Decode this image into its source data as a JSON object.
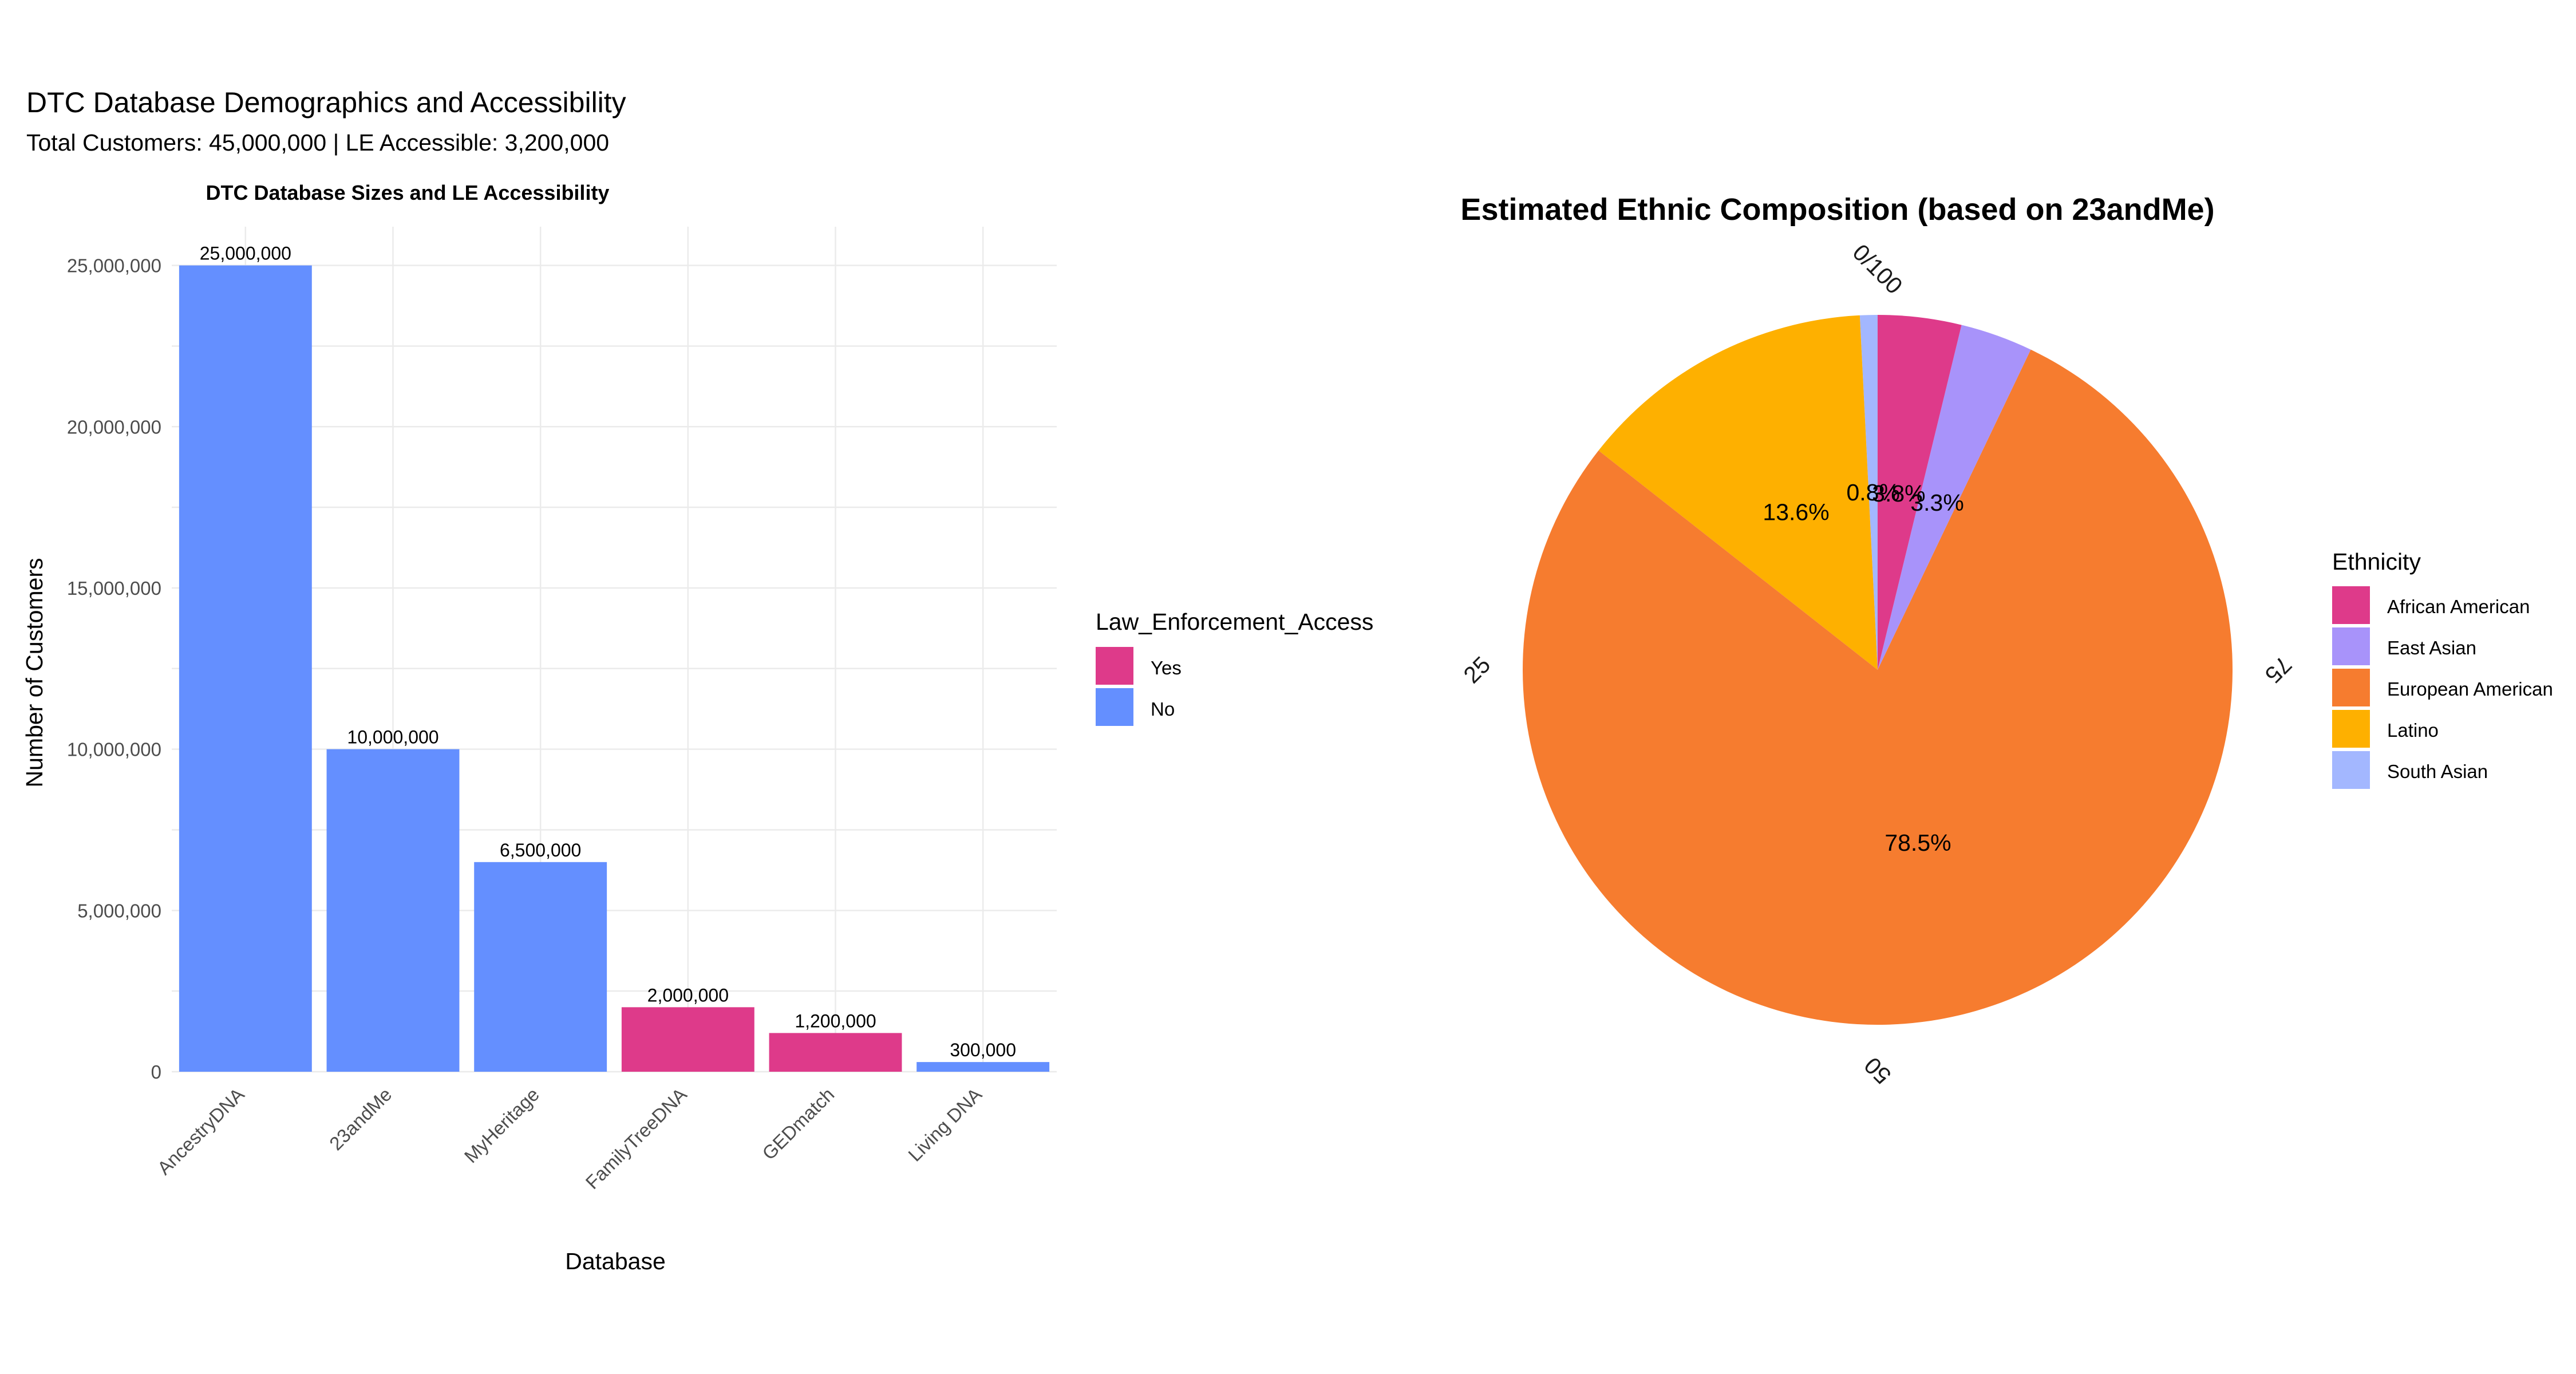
{
  "figure": {
    "title": "DTC Database Demographics and Accessibility",
    "subtitle": "Total Customers: 45,000,000 | LE Accessible: 3,200,000"
  },
  "colors": {
    "yes": "#DE3A8A",
    "no": "#648FFF",
    "african_american": "#DE3A8A",
    "east_asian": "#A893FA",
    "european_american": "#F67C2F",
    "latino": "#FEB000",
    "south_asian": "#A3B7FF",
    "grid": "#EBEBEB"
  },
  "chart_data": [
    {
      "type": "bar",
      "title": "DTC Database Sizes and LE Accessibility",
      "xlabel": "Database",
      "ylabel": "Number of Customers",
      "categories": [
        "AncestryDNA",
        "23andMe",
        "MyHeritage",
        "FamilyTreeDNA",
        "GEDmatch",
        "Living DNA"
      ],
      "values": [
        25000000,
        10000000,
        6500000,
        2000000,
        1200000,
        300000
      ],
      "value_labels": [
        "25,000,000",
        "10,000,000",
        "6,500,000",
        "2,000,000",
        "1,200,000",
        "300,000"
      ],
      "law_enforcement_access": [
        "No",
        "No",
        "No",
        "Yes",
        "Yes",
        "No"
      ],
      "ylim": [
        0,
        26200000
      ],
      "yticks": [
        0,
        5000000,
        10000000,
        15000000,
        20000000,
        25000000
      ],
      "ytick_labels": [
        "0",
        "5,000,000",
        "10,000,000",
        "15,000,000",
        "20,000,000",
        "25,000,000"
      ],
      "grid": true,
      "legend": {
        "title": "Law_Enforcement_Access",
        "placement": "right",
        "entries": [
          {
            "label": "Yes",
            "color_key": "yes"
          },
          {
            "label": "No",
            "color_key": "no"
          }
        ]
      }
    },
    {
      "type": "pie",
      "title": "Estimated Ethnic Composition (based on 23andMe)",
      "slices": [
        {
          "label": "South Asian",
          "value": 0.8,
          "pct_label": "0.8%",
          "color_key": "south_asian"
        },
        {
          "label": "Latino",
          "value": 13.6,
          "pct_label": "13.6%",
          "color_key": "latino"
        },
        {
          "label": "European American",
          "value": 78.5,
          "pct_label": "78.5%",
          "color_key": "european_american"
        },
        {
          "label": "East Asian",
          "value": 3.3,
          "pct_label": "3.3%",
          "color_key": "east_asian"
        },
        {
          "label": "African American",
          "value": 3.8,
          "pct_label": "3.8%",
          "color_key": "african_american"
        }
      ],
      "theta_ticks": [
        0,
        25,
        50,
        75
      ],
      "theta_tick_labels": [
        "0/100",
        "25",
        "50",
        "75"
      ],
      "legend": {
        "title": "Ethnicity",
        "placement": "right",
        "entries": [
          {
            "label": "African American",
            "color_key": "african_american"
          },
          {
            "label": "East Asian",
            "color_key": "east_asian"
          },
          {
            "label": "European American",
            "color_key": "european_american"
          },
          {
            "label": "Latino",
            "color_key": "latino"
          },
          {
            "label": "South Asian",
            "color_key": "south_asian"
          }
        ]
      }
    }
  ]
}
